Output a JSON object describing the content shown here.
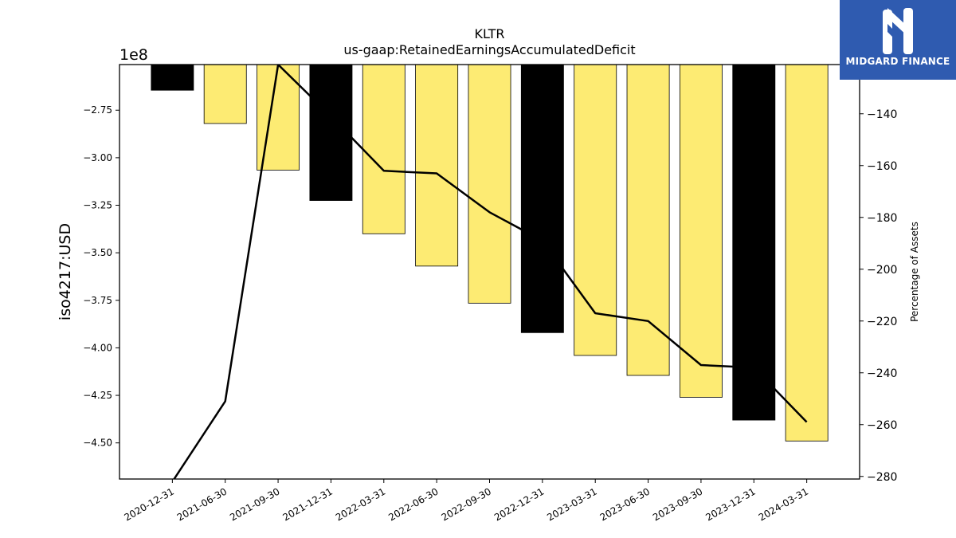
{
  "chart_data": {
    "type": "bar",
    "title": "KLTR",
    "subtitle": "us-gaap:RetainedEarningsAccumulatedDeficit",
    "ylabel": "iso4217:USD",
    "ylabel_right": "Percentage of Assets",
    "y_offset_text": "1e8",
    "ylim": [
      -4.69,
      -2.51
    ],
    "ylim_right": [
      -281,
      -121
    ],
    "yticks": [
      "-2.75",
      "-3.00",
      "-3.25",
      "-3.50",
      "-3.75",
      "-4.00",
      "-4.25",
      "-4.50"
    ],
    "yticks_right": [
      "-140",
      "-160",
      "-180",
      "-200",
      "-220",
      "-240",
      "-260",
      "-280"
    ],
    "categories": [
      "2020-12-31",
      "2021-06-30",
      "2021-09-30",
      "2021-12-31",
      "2022-03-31",
      "2022-06-30",
      "2022-09-30",
      "2022-12-31",
      "2023-03-31",
      "2023-06-30",
      "2023-09-30",
      "2023-12-31",
      "2024-03-31"
    ],
    "series": [
      {
        "type": "bar",
        "values": [
          -2.645,
          -2.82,
          -3.065,
          -3.225,
          -3.4,
          -3.57,
          -3.765,
          -3.92,
          -4.04,
          -4.145,
          -4.26,
          -4.38,
          -4.49
        ],
        "colors": [
          "#000000",
          "#fdeb73",
          "#fdeb73",
          "#000000",
          "#fdeb73",
          "#fdeb73",
          "#fdeb73",
          "#000000",
          "#fdeb73",
          "#fdeb73",
          "#fdeb73",
          "#000000",
          "#fdeb73"
        ]
      },
      {
        "type": "line",
        "axis": "right",
        "values": [
          -282,
          -251,
          -121,
          -141,
          -162,
          -163,
          -178,
          -189,
          -217,
          -220,
          -237,
          -238,
          -259
        ],
        "color": "#000000"
      }
    ],
    "grid": false
  },
  "logo": {
    "text": "MIDGARD FINANCE",
    "color": "#2f5bb0"
  }
}
